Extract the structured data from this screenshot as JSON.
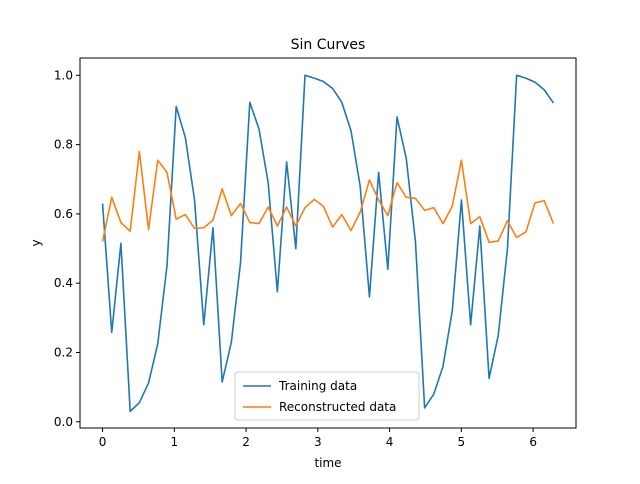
{
  "chart_data": {
    "type": "line",
    "title": "Sin Curves",
    "xlabel": "time",
    "ylabel": "y",
    "xlim": [
      -0.3142,
      6.5973
    ],
    "ylim": [
      -0.018,
      1.05
    ],
    "x_ticks": [
      0,
      1,
      2,
      3,
      4,
      5,
      6
    ],
    "y_ticks": [
      0.0,
      0.2,
      0.4,
      0.6,
      0.8,
      1.0
    ],
    "x_tick_labels": [
      "0",
      "1",
      "2",
      "3",
      "4",
      "5",
      "6"
    ],
    "y_tick_labels": [
      "0.0",
      "0.2",
      "0.4",
      "0.6",
      "0.8",
      "1.0"
    ],
    "grid": false,
    "legend_position": "lower-center",
    "series": [
      {
        "name": "Training data",
        "color": "#1f77b4",
        "x": [
          0.0,
          0.128,
          0.256,
          0.385,
          0.513,
          0.641,
          0.769,
          0.898,
          1.026,
          1.154,
          1.282,
          1.41,
          1.539,
          1.667,
          1.795,
          1.923,
          2.052,
          2.18,
          2.308,
          2.436,
          2.565,
          2.693,
          2.821,
          2.949,
          3.077,
          3.206,
          3.334,
          3.462,
          3.59,
          3.719,
          3.847,
          3.975,
          4.103,
          4.232,
          4.36,
          4.488,
          4.616,
          4.744,
          4.873,
          5.001,
          5.129,
          5.257,
          5.386,
          5.514,
          5.642,
          5.77,
          5.899,
          6.027,
          6.155,
          6.283
        ],
        "y": [
          0.63,
          0.258,
          0.515,
          0.03,
          0.055,
          0.112,
          0.225,
          0.45,
          0.91,
          0.82,
          0.64,
          0.28,
          0.56,
          0.115,
          0.23,
          0.46,
          0.922,
          0.845,
          0.69,
          0.375,
          0.75,
          0.5,
          1.0,
          0.992,
          0.982,
          0.962,
          0.922,
          0.84,
          0.68,
          0.36,
          0.72,
          0.44,
          0.88,
          0.76,
          0.52,
          0.04,
          0.08,
          0.16,
          0.32,
          0.64,
          0.28,
          0.565,
          0.125,
          0.25,
          0.5,
          1.0,
          0.992,
          0.98,
          0.958,
          0.92
        ]
      },
      {
        "name": "Reconstructed data",
        "color": "#ff7f0e",
        "x": [
          0.0,
          0.128,
          0.256,
          0.385,
          0.513,
          0.641,
          0.769,
          0.898,
          1.026,
          1.154,
          1.282,
          1.41,
          1.539,
          1.667,
          1.795,
          1.923,
          2.052,
          2.18,
          2.308,
          2.436,
          2.565,
          2.693,
          2.821,
          2.949,
          3.077,
          3.206,
          3.334,
          3.462,
          3.59,
          3.719,
          3.847,
          3.975,
          4.103,
          4.232,
          4.36,
          4.488,
          4.616,
          4.744,
          4.873,
          5.001,
          5.129,
          5.257,
          5.386,
          5.514,
          5.642,
          5.77,
          5.899,
          6.027,
          6.155,
          6.283
        ],
        "y": [
          0.52,
          0.648,
          0.575,
          0.55,
          0.78,
          0.555,
          0.755,
          0.72,
          0.585,
          0.598,
          0.558,
          0.56,
          0.582,
          0.672,
          0.595,
          0.63,
          0.575,
          0.572,
          0.62,
          0.565,
          0.62,
          0.565,
          0.618,
          0.642,
          0.622,
          0.562,
          0.598,
          0.552,
          0.605,
          0.698,
          0.64,
          0.595,
          0.69,
          0.648,
          0.645,
          0.61,
          0.618,
          0.572,
          0.622,
          0.755,
          0.572,
          0.592,
          0.518,
          0.522,
          0.58,
          0.532,
          0.548,
          0.632,
          0.638,
          0.572
        ]
      }
    ]
  }
}
